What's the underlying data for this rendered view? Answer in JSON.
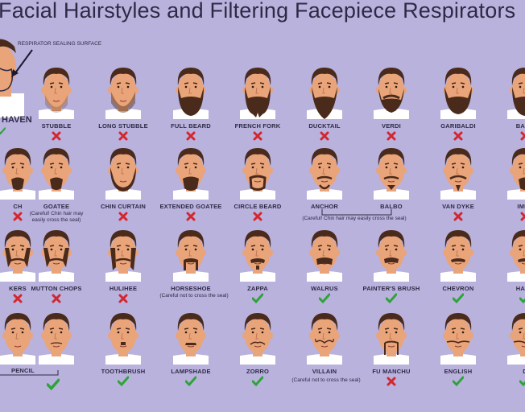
{
  "title": "Facial Hairstyles and Filtering Facepiece Respirators",
  "colors": {
    "background": "#b9b2dd",
    "skin": "#e9a47a",
    "hair": "#4a2a1a",
    "shirt": "#ffffff",
    "check": "#2fa33a",
    "cross": "#d3262e",
    "text": "#2e2a45"
  },
  "annotation": "RESPIRATOR SEALING SURFACE",
  "cleanshaven_label": "HAVEN",
  "pencil_label": "PENCIL",
  "rows": [
    [
      {
        "name": "STUBBLE",
        "ok": false,
        "beard": "stubble"
      },
      {
        "name": "LONG STUBBLE",
        "ok": false,
        "beard": "long-stubble"
      },
      {
        "name": "FULL BEARD",
        "ok": false,
        "beard": "full"
      },
      {
        "name": "FRENCH FORK",
        "ok": false,
        "beard": "fork"
      },
      {
        "name": "DUCKTAIL",
        "ok": false,
        "beard": "ducktail"
      },
      {
        "name": "VERDI",
        "ok": false,
        "beard": "verdi"
      },
      {
        "name": "GARIBALDI",
        "ok": false,
        "beard": "garibaldi"
      },
      {
        "name": "BAND",
        "ok": false,
        "beard": "full"
      }
    ],
    [
      {
        "name": "CH",
        "ok": false,
        "beard": "goatee"
      },
      {
        "name": "GOATEE",
        "ok": null,
        "beard": "goatee"
      },
      {
        "name": "CHIN CURTAIN",
        "ok": false,
        "beard": "curtain"
      },
      {
        "name": "EXTENDED GOATEE",
        "ok": false,
        "beard": "ext-goatee"
      },
      {
        "name": "CIRCLE BEARD",
        "ok": false,
        "beard": "circle"
      },
      {
        "name": "ANCHOR",
        "ok": null,
        "beard": "anchor"
      },
      {
        "name": "BALBO",
        "ok": null,
        "beard": "balbo"
      },
      {
        "name": "VAN DYKE",
        "ok": false,
        "beard": "vandyke"
      },
      {
        "name": "IMPE",
        "ok": false,
        "beard": "goatee"
      }
    ],
    [
      {
        "name": "KERS",
        "ok": false,
        "beard": "mutton"
      },
      {
        "name": "MUTTON CHOPS",
        "ok": false,
        "beard": "mutton"
      },
      {
        "name": "HULIHEE",
        "ok": false,
        "beard": "hulihee"
      },
      {
        "name": "HORSESHOE",
        "ok": null,
        "beard": "horseshoe"
      },
      {
        "name": "ZAPPA",
        "ok": true,
        "beard": "zappa"
      },
      {
        "name": "WALRUS",
        "ok": true,
        "beard": "walrus"
      },
      {
        "name": "PAINTER'S BRUSH",
        "ok": true,
        "beard": "brush"
      },
      {
        "name": "CHEVRON",
        "ok": true,
        "beard": "chevron"
      },
      {
        "name": "HAND",
        "ok": true,
        "beard": "chevron"
      }
    ],
    [
      {
        "name": "",
        "ok": null,
        "beard": "none"
      },
      {
        "name": "",
        "ok": true,
        "beard": "pencil"
      },
      {
        "name": "TOOTHBRUSH",
        "ok": true,
        "beard": "toothbrush"
      },
      {
        "name": "LAMPSHADE",
        "ok": true,
        "beard": "lampshade"
      },
      {
        "name": "ZORRO",
        "ok": true,
        "beard": "zorro"
      },
      {
        "name": "VILLAIN",
        "ok": null,
        "beard": "villain"
      },
      {
        "name": "FU MANCHU",
        "ok": false,
        "beard": "fumanchu"
      },
      {
        "name": "ENGLISH",
        "ok": true,
        "beard": "english"
      },
      {
        "name": "D",
        "ok": true,
        "beard": "english"
      }
    ]
  ],
  "notes": {
    "goatee": "(Careful! Chin hair may easily cross the seal)",
    "anchor_balbo": "(Careful! Chin hair may easily cross the seal)",
    "horseshoe": "(Careful not to cross the seal)",
    "villain": "(Careful not to cross the seal)"
  }
}
